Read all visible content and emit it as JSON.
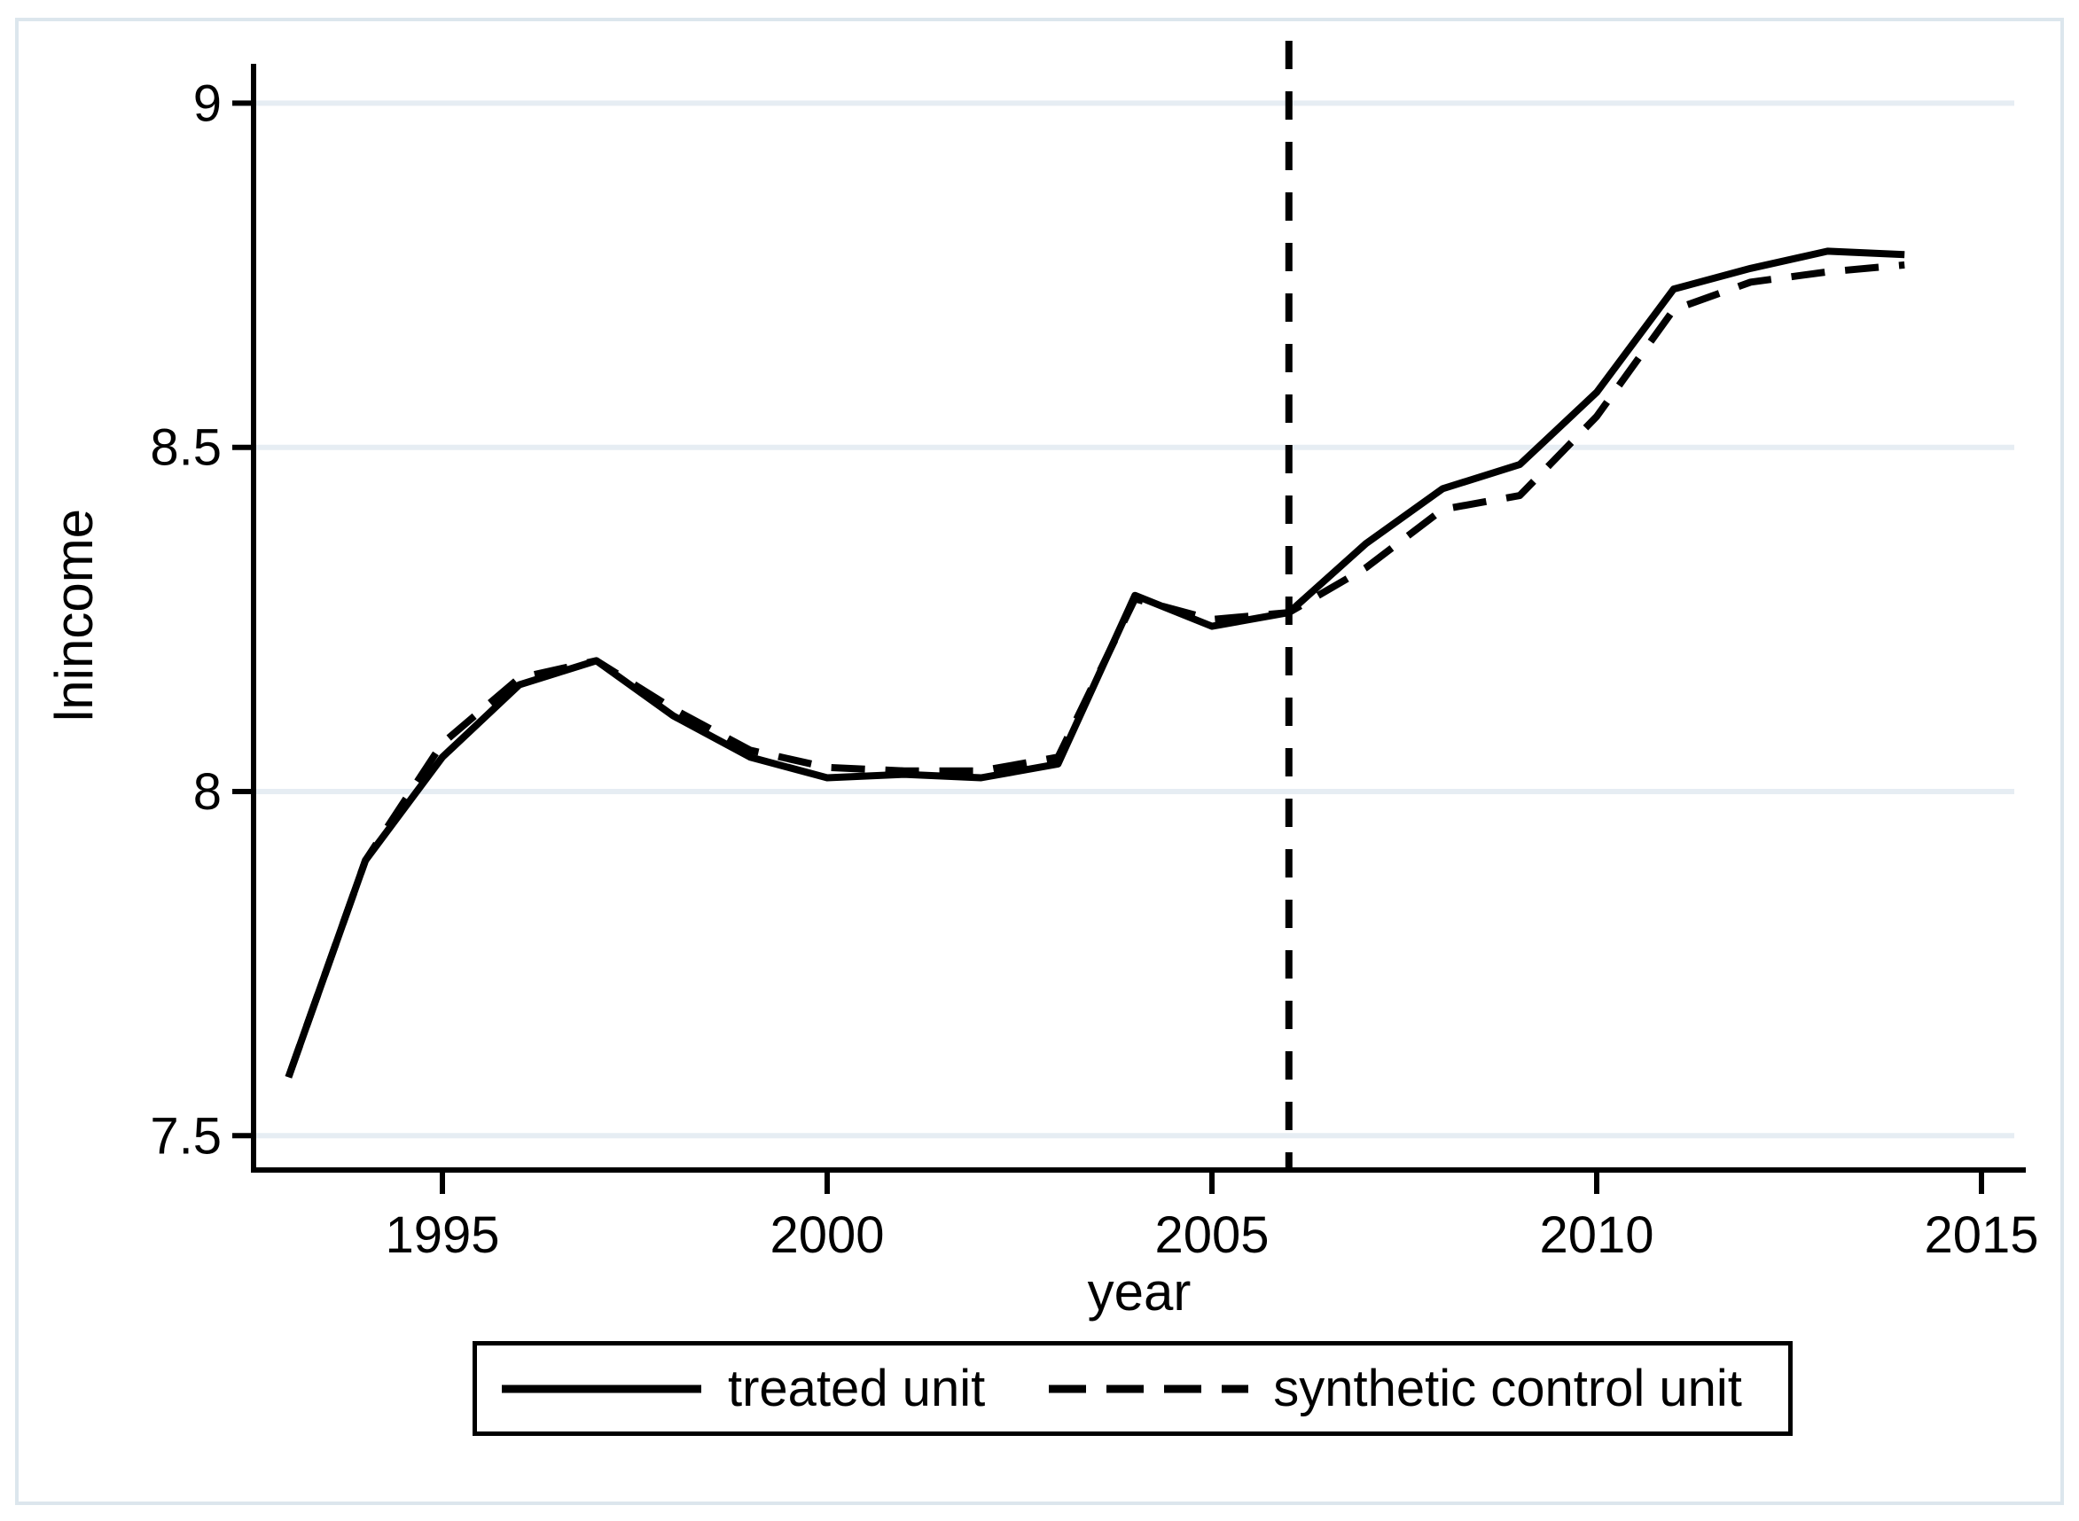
{
  "chart_data": {
    "type": "line",
    "title": "",
    "xlabel": "year",
    "ylabel": "lnincome",
    "x_ticks": [
      1995,
      2000,
      2005,
      2010,
      2015
    ],
    "y_ticks": [
      7.5,
      8,
      8.5,
      9
    ],
    "xlim": [
      1992.5,
      2015.6
    ],
    "ylim": [
      7.45,
      9.06
    ],
    "grid": "horizontal-only",
    "legend_position": "bottom",
    "treatment_line_x": 2006,
    "x": [
      1993,
      1994,
      1995,
      1996,
      1997,
      1998,
      1999,
      2000,
      2001,
      2002,
      2003,
      2004,
      2005,
      2006,
      2007,
      2008,
      2009,
      2010,
      2011,
      2012,
      2013,
      2014
    ],
    "series": [
      {
        "name": "treated unit",
        "style": "solid",
        "values": [
          7.585,
          7.9,
          8.05,
          8.155,
          8.19,
          8.11,
          8.05,
          8.02,
          8.025,
          8.02,
          8.04,
          8.285,
          8.24,
          8.26,
          8.36,
          8.44,
          8.475,
          8.58,
          8.73,
          8.76,
          8.785,
          8.78
        ]
      },
      {
        "name": "synthetic control unit",
        "style": "dashed",
        "values": [
          7.585,
          7.9,
          8.07,
          8.165,
          8.19,
          8.12,
          8.06,
          8.035,
          8.03,
          8.03,
          8.05,
          8.28,
          8.25,
          8.26,
          8.325,
          8.41,
          8.43,
          8.545,
          8.7,
          8.74,
          8.755,
          8.765
        ]
      }
    ]
  },
  "legend": {
    "items": [
      {
        "label": "treated unit",
        "style": "solid"
      },
      {
        "label": "synthetic control unit",
        "style": "dashed"
      }
    ]
  },
  "colors": {
    "line": "#000000",
    "text": "#000000",
    "grid": "#e6edf3",
    "frame": "#dce6ed",
    "background": "#ffffff"
  }
}
